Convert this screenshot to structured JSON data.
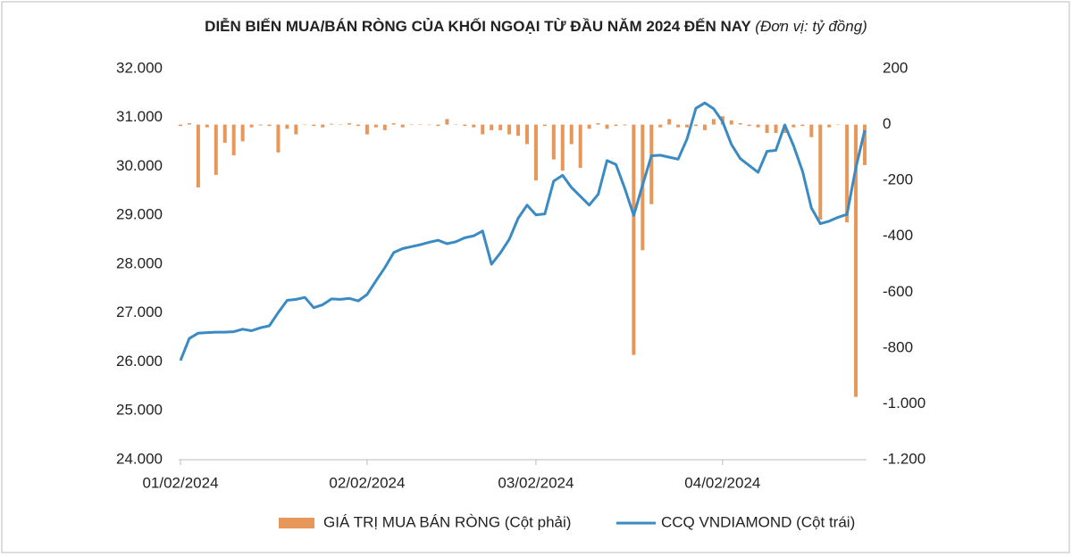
{
  "chart_data": {
    "type": "bar_line",
    "title": "DIỄN BIẾN MUA/BÁN RÒNG CỦA KHỐI NGOẠI TỪ ĐẦU NĂM 2024 ĐẾN NAY",
    "subtitle": "(Đơn vị: tỷ đồng)",
    "categories": [
      "01/02/2024",
      null,
      null,
      null,
      null,
      null,
      null,
      null,
      null,
      null,
      null,
      null,
      null,
      null,
      null,
      null,
      null,
      null,
      null,
      null,
      null,
      "02/02/2024",
      null,
      null,
      null,
      null,
      null,
      null,
      null,
      null,
      null,
      null,
      null,
      null,
      null,
      null,
      null,
      null,
      null,
      null,
      "03/02/2024",
      null,
      null,
      null,
      null,
      null,
      null,
      null,
      null,
      null,
      null,
      null,
      null,
      null,
      null,
      null,
      null,
      null,
      null,
      null,
      null,
      "04/02/2024",
      null,
      null,
      null,
      null,
      null,
      null,
      null,
      null,
      null,
      null,
      null,
      null,
      null,
      null,
      null,
      null
    ],
    "series": [
      {
        "name": "GIÁ TRỊ MUA BÁN RÒNG (Cột phải)",
        "type": "bar",
        "axis": "y2",
        "color": "#e8975a",
        "values": [
          -5,
          5,
          -225,
          -10,
          -180,
          -65,
          -110,
          -60,
          -10,
          -3,
          -5,
          -100,
          -15,
          -35,
          0,
          -5,
          -10,
          3,
          0,
          5,
          -5,
          -35,
          -10,
          -20,
          5,
          -10,
          0,
          0,
          0,
          -5,
          20,
          0,
          -5,
          -10,
          -35,
          -20,
          -20,
          -35,
          -40,
          -70,
          -200,
          -5,
          -125,
          -165,
          -70,
          -155,
          -15,
          5,
          -15,
          -5,
          -3,
          -825,
          -450,
          -285,
          -10,
          20,
          -10,
          -10,
          -5,
          -20,
          20,
          30,
          15,
          5,
          -5,
          -10,
          -30,
          -30,
          -30,
          -10,
          -5,
          -45,
          -340,
          -10,
          0,
          -350,
          -975,
          -145
        ]
      },
      {
        "name": "CCQ VNDIAMOND (Cột trái)",
        "type": "line",
        "axis": "y",
        "color": "#3a8ac4",
        "values": [
          26030,
          26480,
          26590,
          26600,
          26610,
          26610,
          26620,
          26670,
          26640,
          26700,
          26740,
          27010,
          27260,
          27280,
          27320,
          27110,
          27170,
          27290,
          27280,
          27300,
          27250,
          27380,
          27660,
          27930,
          28240,
          28320,
          28360,
          28400,
          28450,
          28490,
          28420,
          28460,
          28540,
          28580,
          28680,
          28000,
          28230,
          28510,
          28940,
          29210,
          29010,
          29030,
          29700,
          29820,
          29570,
          29390,
          29210,
          29430,
          30120,
          30040,
          29550,
          29000,
          29620,
          30220,
          30230,
          30190,
          30150,
          30560,
          31190,
          31300,
          31180,
          30920,
          30450,
          30160,
          30020,
          29880,
          30310,
          30330,
          30850,
          30420,
          29900,
          29150,
          28830,
          28880,
          28960,
          29020,
          29980,
          30740
        ]
      }
    ],
    "ylim": [
      24000,
      32000
    ],
    "yticks": [
      {
        "value": 24000,
        "label": "24.000"
      },
      {
        "value": 25000,
        "label": "25.000"
      },
      {
        "value": 26000,
        "label": "26.000"
      },
      {
        "value": 27000,
        "label": "27.000"
      },
      {
        "value": 28000,
        "label": "28.000"
      },
      {
        "value": 29000,
        "label": "29.000"
      },
      {
        "value": 30000,
        "label": "30.000"
      },
      {
        "value": 31000,
        "label": "31.000"
      },
      {
        "value": 32000,
        "label": "32.000"
      }
    ],
    "y2lim": [
      -1200,
      200
    ],
    "y2ticks": [
      {
        "value": -1200,
        "label": "-1.200"
      },
      {
        "value": -1000,
        "label": "-1.000"
      },
      -800,
      -600,
      -400,
      -200,
      0,
      200
    ],
    "legend": "bottom"
  }
}
